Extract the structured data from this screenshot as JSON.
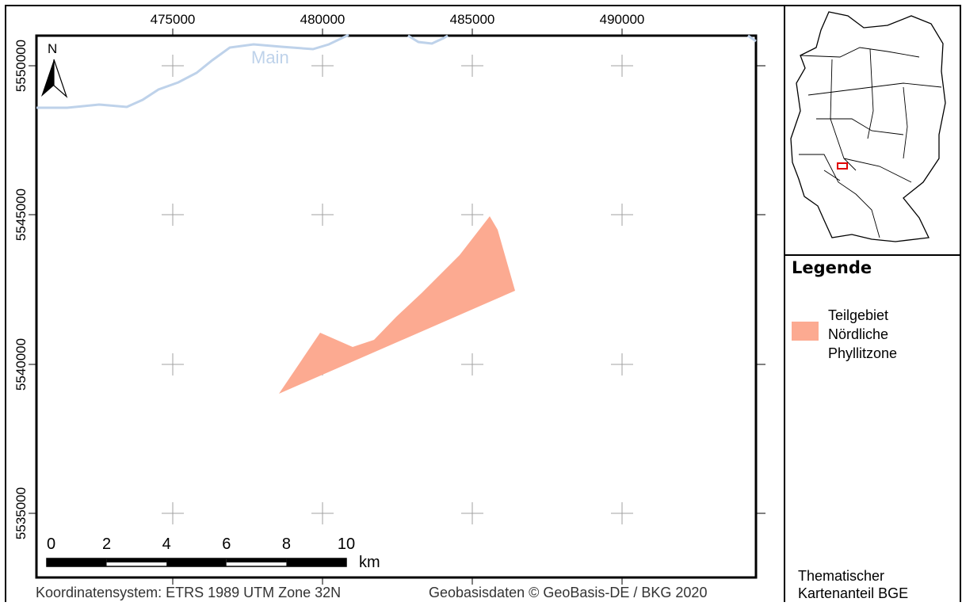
{
  "map": {
    "x_ticks": [
      "475000",
      "480000",
      "485000",
      "490000"
    ],
    "y_ticks": [
      "5550000",
      "5545000",
      "5540000",
      "5535000"
    ],
    "north_label": "N",
    "river_label": "Main",
    "colors": {
      "river": "#bed2ea",
      "area_fill": "#fcaa91",
      "inset_marker": "#e00000",
      "grid_cross": "#a0a0a0"
    }
  },
  "scalebar": {
    "labels": [
      "0",
      "2",
      "4",
      "6",
      "8",
      "10"
    ],
    "unit": "km"
  },
  "legend": {
    "title": "Legende",
    "items": [
      {
        "label": "Teilgebiet Nördliche Phyllitzone",
        "color": "#fcaa91"
      }
    ]
  },
  "footer": {
    "crs": "Koordinatensystem: ETRS 1989 UTM Zone 32N",
    "source": "Geobasisdaten © GeoBasis-DE / BKG 2020",
    "credit": "Thematischer Kartenanteil BGE"
  }
}
